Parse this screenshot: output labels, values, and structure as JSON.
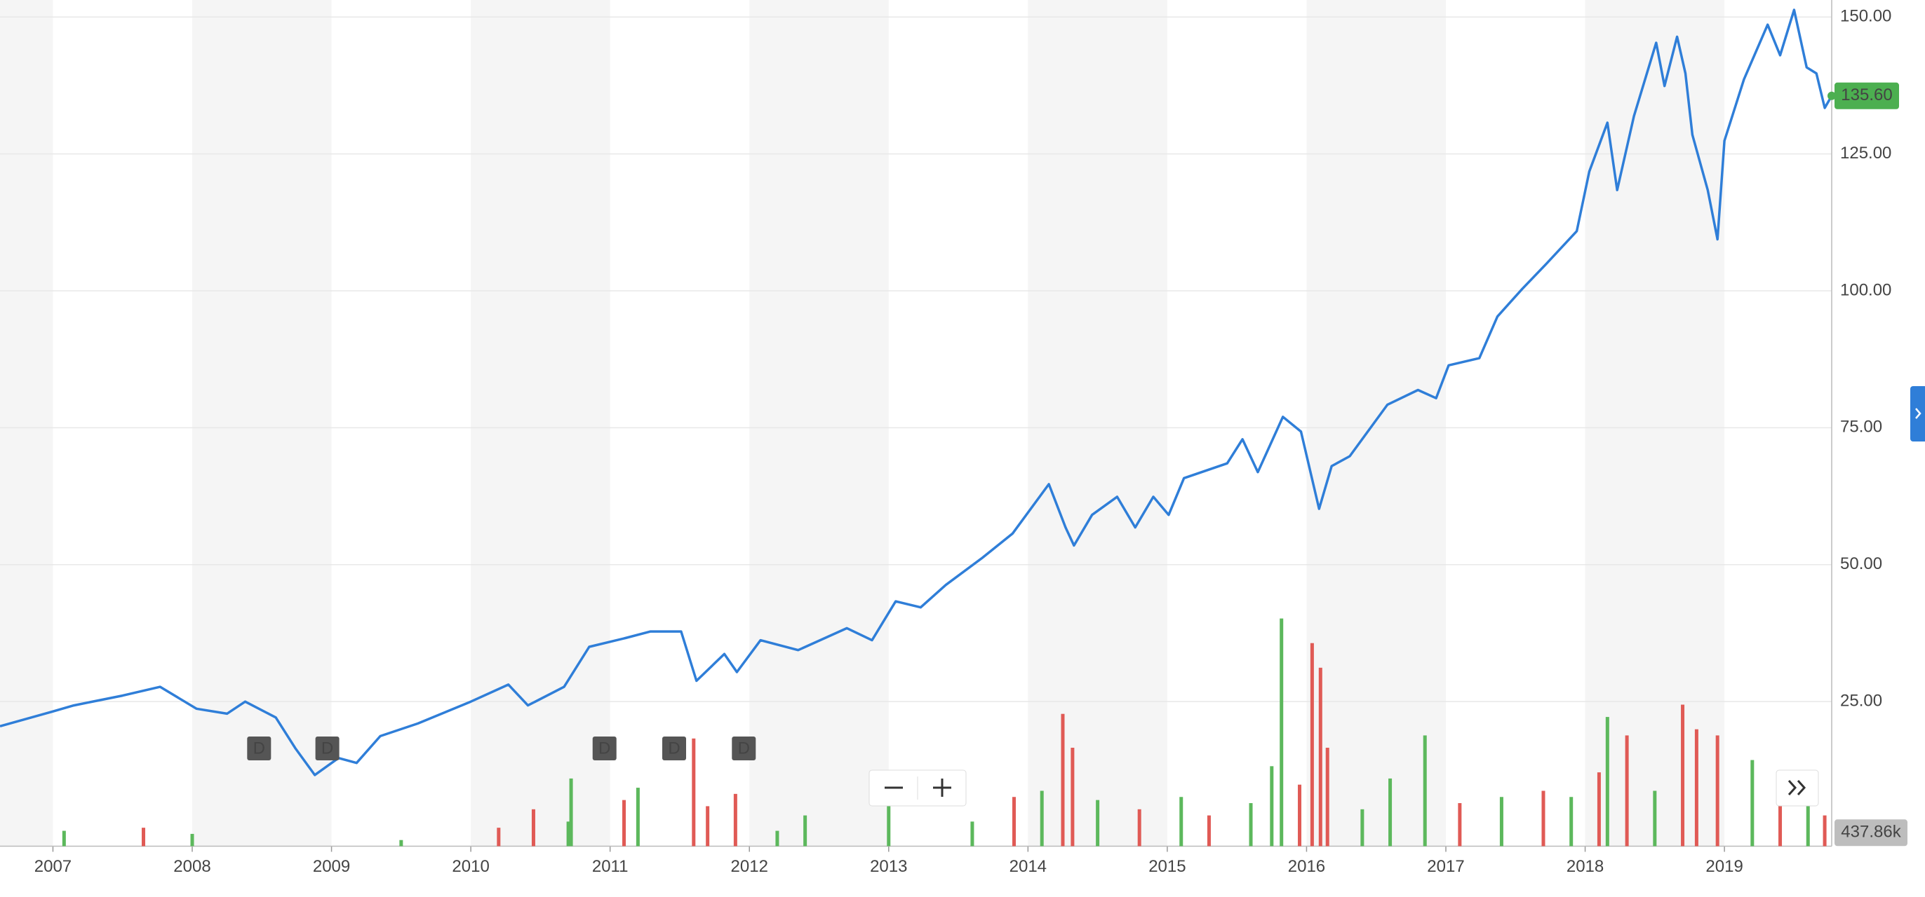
{
  "chart_data": {
    "type": "line",
    "x": [
      2006.62,
      2007.0,
      2007.15,
      2007.5,
      2007.77,
      2008.03,
      2008.25,
      2008.38,
      2008.6,
      2008.74,
      2008.88,
      2009.05,
      2009.18,
      2009.35,
      2009.62,
      2010.0,
      2010.27,
      2010.41,
      2010.67,
      2010.85,
      2011.11,
      2011.29,
      2011.51,
      2011.62,
      2011.82,
      2011.91,
      2012.08,
      2012.35,
      2012.7,
      2012.88,
      2013.05,
      2013.23,
      2013.41,
      2013.67,
      2013.89,
      2014.15,
      2014.27,
      2014.33,
      2014.46,
      2014.64,
      2014.77,
      2014.9,
      2015.01,
      2015.12,
      2015.43,
      2015.54,
      2015.65,
      2015.83,
      2015.96,
      2016.09,
      2016.18,
      2016.31,
      2016.58,
      2016.8,
      2016.93,
      2017.02,
      2017.24,
      2017.37,
      2017.55,
      2017.72,
      2017.94,
      2018.03,
      2018.16,
      2018.23,
      2018.35,
      2018.51,
      2018.57,
      2018.66,
      2018.72,
      2018.77,
      2018.88,
      2018.95,
      2019.0,
      2019.14,
      2019.31,
      2019.4,
      2019.5,
      2019.59,
      2019.66,
      2019.72,
      2019.77
    ],
    "series": [
      {
        "color": "#2f7ed8",
        "values": [
          20.5,
          23.2,
          24.3,
          26.1,
          27.7,
          23.7,
          22.8,
          25,
          22.1,
          16.5,
          11.6,
          14.7,
          13.8,
          18.7,
          21,
          25,
          28.1,
          24.3,
          27.7,
          35,
          36.6,
          37.8,
          37.8,
          28.8,
          33.7,
          30.4,
          36.2,
          34.4,
          38.4,
          36.2,
          43.3,
          42.2,
          46.3,
          51.2,
          55.7,
          64.7,
          56.8,
          53.5,
          59.1,
          62.4,
          56.8,
          62.4,
          59.1,
          65.8,
          68.5,
          72.9,
          66.9,
          77,
          74.3,
          60.2,
          68,
          69.8,
          79.2,
          81.9,
          80.4,
          86.4,
          87.7,
          95.3,
          100.4,
          104.9,
          110.9,
          121.8,
          130.7,
          118.4,
          131.9,
          145.3,
          137.4,
          146.4,
          139.7,
          128.5,
          118.4,
          109.4,
          127.4,
          138.6,
          148.6,
          143,
          151.3,
          140.8,
          139.7,
          133.4,
          135.6
        ],
        "last": {
          "value": 135.6,
          "label": "135.60"
        }
      }
    ],
    "xlim": [
      2006.62,
      2019.77
    ],
    "xticks": [
      2007,
      2008,
      2009,
      2010,
      2011,
      2012,
      2013,
      2014,
      2015,
      2016,
      2017,
      2018,
      2019
    ],
    "ylim": [
      -1.4,
      153.1
    ],
    "yticks": [
      {
        "value": 25,
        "label": "25.00"
      },
      {
        "value": 50,
        "label": "50.00"
      },
      {
        "value": 75,
        "label": "75.00"
      },
      {
        "value": 100,
        "label": "100.00"
      },
      {
        "value": 125,
        "label": "125.00"
      },
      {
        "value": 150,
        "label": "150.00"
      }
    ],
    "grid": true,
    "volume": {
      "type": "bar",
      "x": [
        2007.08,
        2007.65,
        2008.0,
        2009.5,
        2010.2,
        2010.45,
        2010.7,
        2010.72,
        2011.1,
        2011.2,
        2011.6,
        2011.7,
        2011.9,
        2012.2,
        2012.4,
        2013.0,
        2013.6,
        2013.9,
        2014.1,
        2014.25,
        2014.32,
        2014.5,
        2014.8,
        2015.1,
        2015.3,
        2015.6,
        2015.75,
        2015.82,
        2015.95,
        2016.04,
        2016.1,
        2016.15,
        2016.4,
        2016.6,
        2016.85,
        2017.1,
        2017.4,
        2017.7,
        2017.9,
        2018.1,
        2018.16,
        2018.3,
        2018.5,
        2018.7,
        2018.8,
        2018.95,
        2019.2,
        2019.4,
        2019.6,
        2019.72
      ],
      "values": [
        500000,
        600000,
        400000,
        200000,
        600000,
        1200000,
        800000,
        2200000,
        1500000,
        1900000,
        3500000,
        1300000,
        1700000,
        500000,
        1000000,
        1300000,
        800000,
        1600000,
        1800000,
        4300000,
        3200000,
        1500000,
        1200000,
        1600000,
        1000000,
        1400000,
        2600000,
        7400000,
        2000000,
        6600000,
        5800000,
        3200000,
        1200000,
        2200000,
        3600000,
        1400000,
        1600000,
        1800000,
        1600000,
        2400000,
        4200000,
        3600000,
        1800000,
        4600000,
        3800000,
        3600000,
        2800000,
        1600000,
        1400000,
        1000000
      ],
      "colors": [
        "#5cb85c",
        "#e05a55",
        "#5cb85c",
        "#5cb85c",
        "#e05a55",
        "#e05a55",
        "#5cb85c",
        "#5cb85c",
        "#e05a55",
        "#5cb85c",
        "#e05a55",
        "#e05a55",
        "#e05a55",
        "#5cb85c",
        "#5cb85c",
        "#5cb85c",
        "#5cb85c",
        "#e05a55",
        "#5cb85c",
        "#e05a55",
        "#e05a55",
        "#5cb85c",
        "#e05a55",
        "#5cb85c",
        "#e05a55",
        "#5cb85c",
        "#5cb85c",
        "#5cb85c",
        "#e05a55",
        "#e05a55",
        "#e05a55",
        "#e05a55",
        "#5cb85c",
        "#5cb85c",
        "#5cb85c",
        "#e05a55",
        "#5cb85c",
        "#e05a55",
        "#5cb85c",
        "#e05a55",
        "#5cb85c",
        "#e05a55",
        "#5cb85c",
        "#e05a55",
        "#e05a55",
        "#e05a55",
        "#5cb85c",
        "#e05a55",
        "#5cb85c",
        "#e05a55"
      ],
      "y2lim": [
        0,
        27500000
      ],
      "last": {
        "value": 437860,
        "label": "437.86k"
      }
    },
    "dividends": {
      "label": "D",
      "x": [
        2008.48,
        2008.97,
        2010.96,
        2011.46,
        2011.96
      ]
    }
  }
}
